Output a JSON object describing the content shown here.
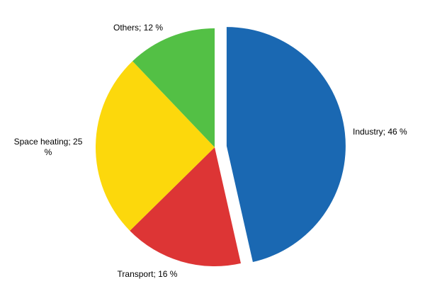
{
  "chart_data": {
    "type": "pie",
    "start_angle_deg": 0,
    "direction": "clockwise",
    "exploded": [
      "Industry"
    ],
    "slices": [
      {
        "name": "Industry",
        "value": 46,
        "label": "Industry; 46 %",
        "color": "#1a68b2"
      },
      {
        "name": "Transport",
        "value": 16,
        "label": "Transport; 16 %",
        "color": "#dd3535"
      },
      {
        "name": "Space heating",
        "value": 25,
        "label": "Space heating; 25 %",
        "color": "#fcd80c"
      },
      {
        "name": "Others",
        "value": 12,
        "label": "Others; 12 %",
        "color": "#53c045"
      }
    ]
  }
}
